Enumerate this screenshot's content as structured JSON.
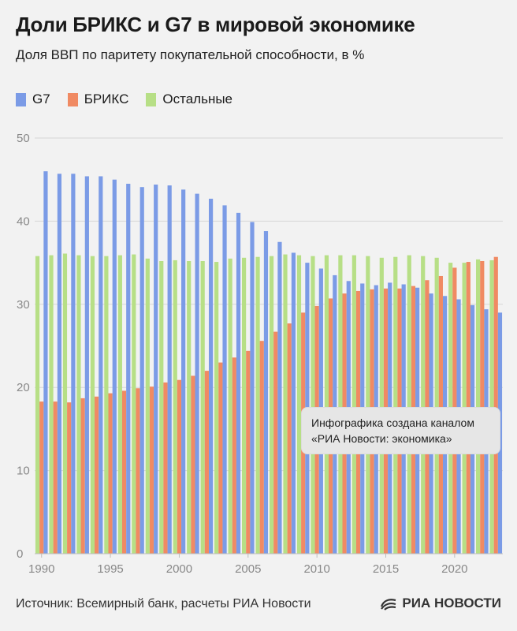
{
  "header": {
    "title": "Доли БРИКС и G7 в мировой экономике",
    "subtitle": "Доля ВВП по паритету покупательной способности, в %"
  },
  "colors": {
    "g7": "#7b9be6",
    "brics": "#f08a63",
    "other": "#b7df86"
  },
  "chart_data": {
    "type": "bar",
    "x": [
      1990,
      1991,
      1992,
      1993,
      1994,
      1995,
      1996,
      1997,
      1998,
      1999,
      2000,
      2001,
      2002,
      2003,
      2004,
      2005,
      2006,
      2007,
      2008,
      2009,
      2010,
      2011,
      2012,
      2013,
      2014,
      2015,
      2016,
      2017,
      2018,
      2019,
      2020,
      2021,
      2022,
      2023
    ],
    "x_tick_labels": [
      "1990",
      "1995",
      "2000",
      "2005",
      "2010",
      "2015",
      "2020"
    ],
    "series": [
      {
        "name": "G7",
        "values": [
          46.0,
          45.7,
          45.7,
          45.4,
          45.4,
          45.0,
          44.5,
          44.1,
          44.4,
          44.3,
          43.8,
          43.3,
          42.7,
          41.9,
          41.0,
          39.9,
          38.8,
          37.5,
          36.2,
          35.0,
          34.3,
          33.5,
          32.8,
          32.5,
          32.3,
          32.6,
          32.4,
          32.0,
          31.3,
          31.0,
          30.6,
          29.9,
          29.4,
          29.0
        ]
      },
      {
        "name": "БРИКС",
        "values": [
          18.3,
          18.3,
          18.2,
          18.7,
          18.9,
          19.3,
          19.6,
          19.9,
          20.1,
          20.6,
          20.9,
          21.4,
          22.0,
          23.0,
          23.6,
          24.4,
          25.6,
          26.7,
          27.7,
          29.0,
          29.8,
          30.7,
          31.3,
          31.6,
          31.8,
          31.9,
          31.9,
          32.2,
          32.9,
          33.4,
          34.4,
          35.1,
          35.2,
          35.7
        ]
      },
      {
        "name": "Остальные",
        "values": [
          35.8,
          35.9,
          36.1,
          35.9,
          35.8,
          35.8,
          35.9,
          36.0,
          35.5,
          35.2,
          35.3,
          35.2,
          35.2,
          35.1,
          35.5,
          35.6,
          35.7,
          35.8,
          36.0,
          35.9,
          35.8,
          35.9,
          35.9,
          35.9,
          35.8,
          35.6,
          35.7,
          35.9,
          35.8,
          35.6,
          35.0,
          35.0,
          35.4,
          35.3
        ]
      }
    ],
    "ylim": [
      0,
      50
    ],
    "y_ticks": [
      0,
      10,
      20,
      30,
      40,
      50
    ],
    "grid": true,
    "legend": "top-left"
  },
  "note": {
    "line1": "Инфографика создана каналом",
    "line2": "«РИА Новости: экономика»"
  },
  "footer": {
    "source": "Источник: Всемирный банк, расчеты РИА Новости",
    "logo": "РИА НОВОСТИ"
  }
}
